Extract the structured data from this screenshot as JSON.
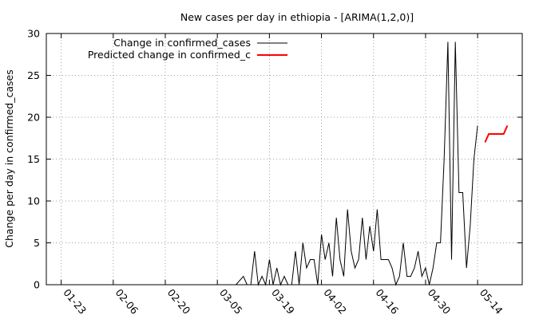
{
  "chart_data": {
    "type": "line",
    "title": "New cases per day in ethiopia -  [ARIMA(1,2,0)]",
    "xlabel": "",
    "ylabel": "Change per day in confirmed_cases",
    "xlim": [
      "2020-01-19",
      "2020-05-26"
    ],
    "ylim": [
      0,
      30
    ],
    "yticks": [
      0,
      5,
      10,
      15,
      20,
      25,
      30
    ],
    "xtick_labels": [
      "01-23",
      "02-06",
      "02-20",
      "03-05",
      "03-19",
      "04-02",
      "04-16",
      "04-30",
      "05-14"
    ],
    "xtick_dates": [
      "2020-01-23",
      "2020-02-06",
      "2020-02-20",
      "2020-03-05",
      "2020-03-19",
      "2020-04-02",
      "2020-04-16",
      "2020-04-30",
      "2020-05-14"
    ],
    "grid": true,
    "legend_position": "top-left",
    "series": [
      {
        "name": "Change in confirmed_cases",
        "color": "#000000",
        "x": [
          "2020-03-12",
          "2020-03-13",
          "2020-03-14",
          "2020-03-15",
          "2020-03-16",
          "2020-03-17",
          "2020-03-18",
          "2020-03-19",
          "2020-03-20",
          "2020-03-21",
          "2020-03-22",
          "2020-03-23",
          "2020-03-24",
          "2020-03-25",
          "2020-03-26",
          "2020-03-27",
          "2020-03-28",
          "2020-03-29",
          "2020-03-30",
          "2020-03-31",
          "2020-04-01",
          "2020-04-02",
          "2020-04-03",
          "2020-04-04",
          "2020-04-05",
          "2020-04-06",
          "2020-04-07",
          "2020-04-08",
          "2020-04-09",
          "2020-04-10",
          "2020-04-11",
          "2020-04-12",
          "2020-04-13",
          "2020-04-14",
          "2020-04-15",
          "2020-04-16",
          "2020-04-17",
          "2020-04-18",
          "2020-04-19",
          "2020-04-20",
          "2020-04-21",
          "2020-04-22",
          "2020-04-23",
          "2020-04-24",
          "2020-04-25",
          "2020-04-26",
          "2020-04-27",
          "2020-04-28",
          "2020-04-29",
          "2020-04-30",
          "2020-05-01",
          "2020-05-02",
          "2020-05-03",
          "2020-05-04",
          "2020-05-05",
          "2020-05-06",
          "2020-05-07",
          "2020-05-08",
          "2020-05-09",
          "2020-05-10",
          "2020-05-11",
          "2020-05-12",
          "2020-05-13",
          "2020-05-14",
          "2020-05-15"
        ],
        "values": [
          1,
          0,
          0,
          4,
          0,
          1,
          0,
          3,
          0,
          2,
          0,
          1,
          0,
          0,
          4,
          0,
          5,
          2,
          3,
          3,
          0,
          6,
          3,
          5,
          1,
          8,
          3,
          1,
          9,
          4,
          2,
          3,
          8,
          3,
          7,
          4,
          9,
          3,
          3,
          3,
          2,
          0,
          1,
          5,
          1,
          1,
          2,
          4,
          1,
          2,
          0,
          2,
          5,
          5,
          15,
          29,
          3,
          29,
          11,
          11,
          2,
          7,
          15,
          19,
          null
        ],
        "start_of_series": "2020-03-10",
        "leading_zero_from": "2020-01-19"
      },
      {
        "name": "Predicted change in confirmed_c",
        "color": "#ff0000",
        "x": [
          "2020-05-16",
          "2020-05-17",
          "2020-05-18",
          "2020-05-19",
          "2020-05-20",
          "2020-05-21",
          "2020-05-22"
        ],
        "values": [
          17,
          18,
          18,
          18,
          18,
          18,
          19
        ]
      }
    ]
  }
}
